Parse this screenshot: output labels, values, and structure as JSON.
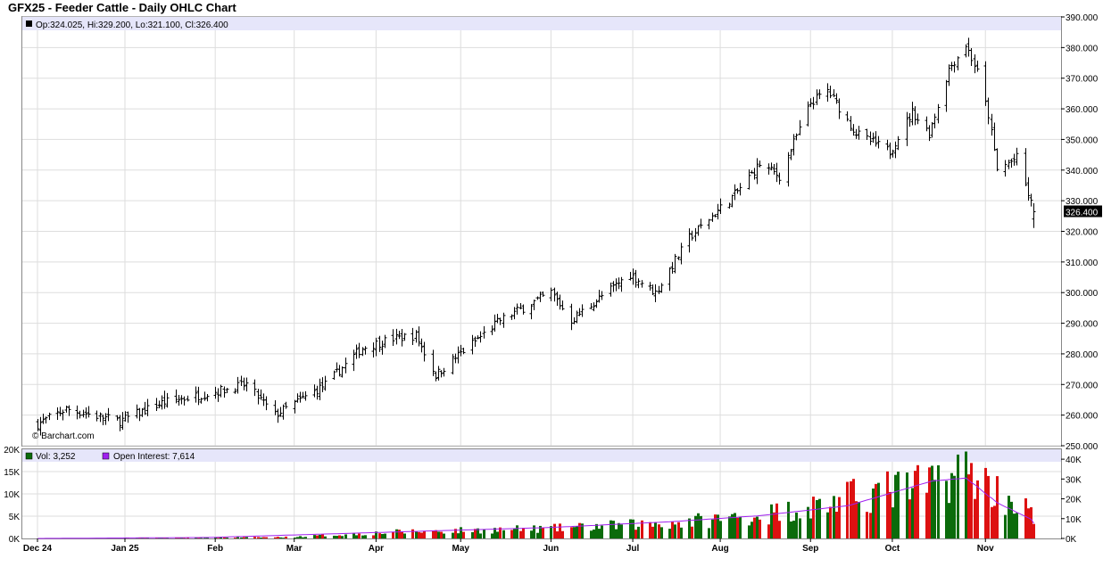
{
  "title": "GFX25 - Feeder Cattle - Daily OHLC Chart",
  "watermark": "© Barchart.com",
  "info_ohlc": "Op:324.025, Hi:329.200, Lo:321.100, Cl:326.400",
  "last_price_label": "326.400",
  "vol_info": "Vol: 3,252",
  "oi_info": "Open Interest: 7,614",
  "colors": {
    "panel_bg": "#e6e6fa",
    "up": "#0b6b0b",
    "down": "#dd1111",
    "open_interest": "#a020f0",
    "grid": "#dddddd"
  },
  "chart_data": {
    "type": "ohlc",
    "price_axis": {
      "min": 250,
      "max": 390,
      "ticks": [
        "390.000",
        "380.000",
        "370.000",
        "360.000",
        "350.000",
        "340.000",
        "330.000",
        "320.000",
        "310.000",
        "300.000",
        "290.000",
        "280.000",
        "270.000",
        "260.000",
        "250.000"
      ]
    },
    "volume_axis_left": {
      "min": 0,
      "max": 20000,
      "ticks": [
        "20K",
        "15K",
        "10K",
        "5K",
        "0K"
      ]
    },
    "open_interest_axis_right": {
      "min": 0,
      "max": 45000,
      "ticks": [
        "40K",
        "30K",
        "20K",
        "10K",
        "0K"
      ]
    },
    "x_labels": [
      "Dec 24",
      "Jan 25",
      "Feb",
      "Mar",
      "Apr",
      "May",
      "Jun",
      "Jul",
      "Aug",
      "Sep",
      "Oct",
      "Nov"
    ],
    "close_keyframes": [
      [
        "2024-12-02",
        257
      ],
      [
        "2024-12-12",
        262
      ],
      [
        "2024-12-31",
        258
      ],
      [
        "2025-01-15",
        264
      ],
      [
        "2025-01-31",
        267
      ],
      [
        "2025-02-14",
        270
      ],
      [
        "2025-02-24",
        260
      ],
      [
        "2025-03-07",
        266
      ],
      [
        "2025-03-14",
        270
      ],
      [
        "2025-03-27",
        282
      ],
      [
        "2025-04-07",
        285
      ],
      [
        "2025-04-15",
        286
      ],
      [
        "2025-04-22",
        273
      ],
      [
        "2025-04-28",
        278
      ],
      [
        "2025-05-15",
        291
      ],
      [
        "2025-06-02",
        300
      ],
      [
        "2025-06-09",
        291
      ],
      [
        "2025-06-30",
        306
      ],
      [
        "2025-07-09",
        300
      ],
      [
        "2025-07-21",
        318
      ],
      [
        "2025-08-06",
        332
      ],
      [
        "2025-08-15",
        342
      ],
      [
        "2025-08-22",
        338
      ],
      [
        "2025-09-02",
        362
      ],
      [
        "2025-09-08",
        366
      ],
      [
        "2025-09-18",
        352
      ],
      [
        "2025-09-30",
        346
      ],
      [
        "2025-10-08",
        359
      ],
      [
        "2025-10-14",
        352
      ],
      [
        "2025-10-21",
        373
      ],
      [
        "2025-10-27",
        381
      ],
      [
        "2025-10-31",
        372
      ],
      [
        "2025-11-04",
        358
      ],
      [
        "2025-11-07",
        340
      ],
      [
        "2025-11-14",
        344
      ],
      [
        "2025-11-20",
        326
      ]
    ],
    "volume_keyframes": [
      [
        "2024-12-02",
        0
      ],
      [
        "2025-03-01",
        300
      ],
      [
        "2025-04-10",
        1500
      ],
      [
        "2025-06-01",
        2200
      ],
      [
        "2025-07-15",
        3500
      ],
      [
        "2025-08-15",
        5200
      ],
      [
        "2025-09-05",
        7500
      ],
      [
        "2025-09-25",
        10500
      ],
      [
        "2025-10-10",
        11500
      ],
      [
        "2025-10-27",
        16000
      ],
      [
        "2025-11-07",
        10500
      ],
      [
        "2025-11-20",
        5500
      ]
    ],
    "open_interest_keyframes": [
      [
        "2024-12-02",
        0
      ],
      [
        "2025-02-01",
        500
      ],
      [
        "2025-04-01",
        3000
      ],
      [
        "2025-06-01",
        5500
      ],
      [
        "2025-07-15",
        8500
      ],
      [
        "2025-08-15",
        11500
      ],
      [
        "2025-09-15",
        16500
      ],
      [
        "2025-10-15",
        29000
      ],
      [
        "2025-10-27",
        30500
      ],
      [
        "2025-11-07",
        18000
      ],
      [
        "2025-11-20",
        9000
      ]
    ]
  }
}
